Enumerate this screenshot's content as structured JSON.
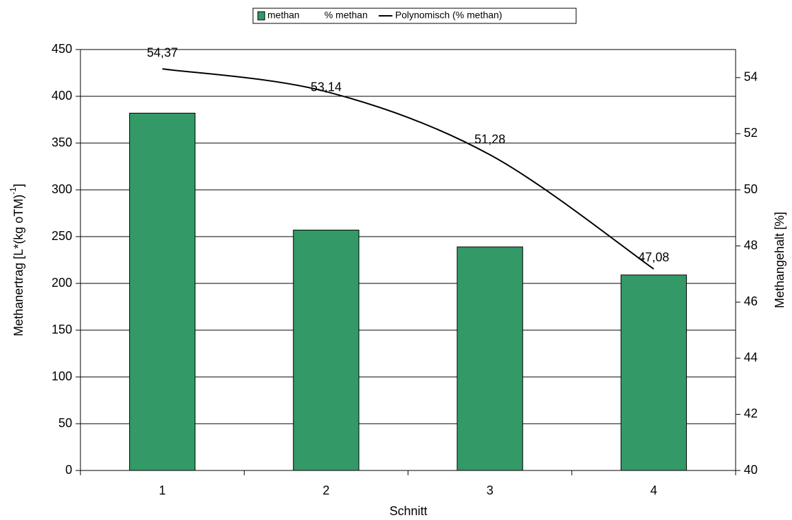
{
  "chart_data": {
    "type": "bar",
    "x_label": "Schnitt",
    "y_label": "Methanertrag [L*(kg oTM)",
    "y_label_sup": "-1",
    "y_label_end": "]",
    "y2_label": "Methangehalt  [%]",
    "categories": [
      "1",
      "2",
      "3",
      "4"
    ],
    "series": [
      {
        "name": "methan",
        "type": "bar",
        "color": "#339966",
        "values": [
          382,
          257,
          239,
          209
        ]
      },
      {
        "name": "% methan",
        "type": "labels",
        "axis": "y2",
        "values": [
          54.37,
          53.14,
          51.28,
          47.08
        ],
        "value_labels": [
          "54,37",
          "53,14",
          "51,28",
          "47,08"
        ]
      },
      {
        "name": "Polynomisch (% methan)",
        "type": "line",
        "axis": "y2",
        "color": "#000000",
        "values": [
          54.31,
          53.5,
          51.25,
          47.18
        ]
      }
    ],
    "ylim": [
      0,
      450
    ],
    "yticks": [
      0,
      50,
      100,
      150,
      200,
      250,
      300,
      350,
      400,
      450
    ],
    "y2lim": [
      40,
      55
    ],
    "y2ticks": [
      40,
      42,
      44,
      46,
      48,
      50,
      52,
      54
    ],
    "grid": true
  }
}
